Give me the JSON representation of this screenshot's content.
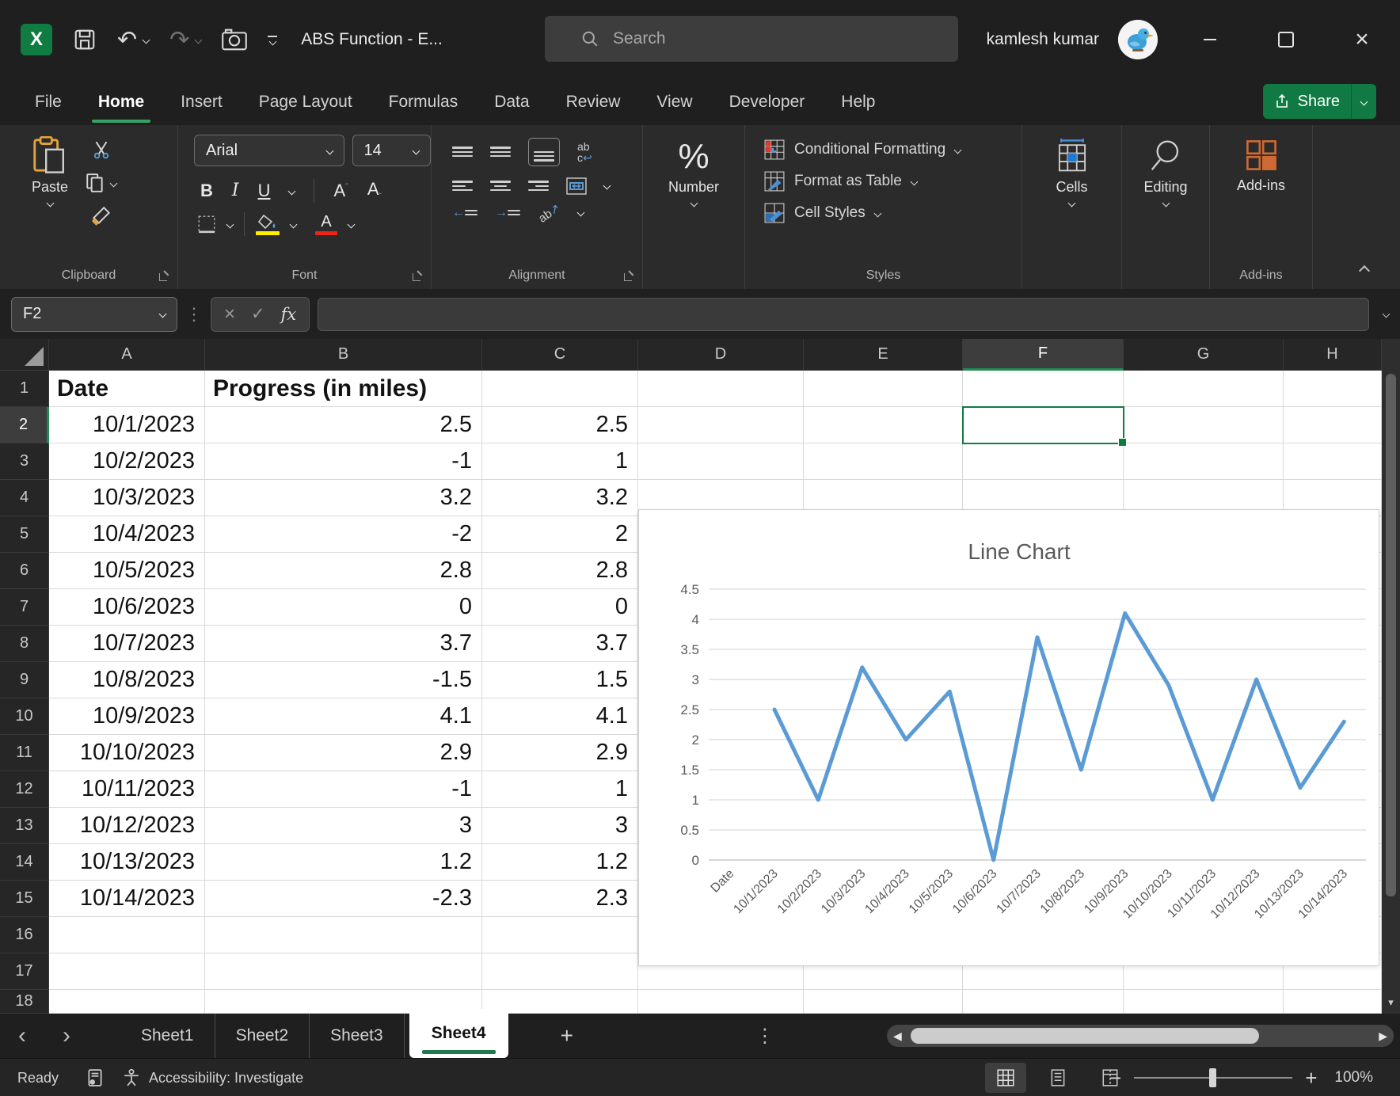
{
  "title_bar": {
    "app_title": "ABS Function  -  E...",
    "search_placeholder": "Search",
    "user_name": "kamlesh kumar"
  },
  "ribbon_tabs": [
    {
      "label": "File",
      "active": false
    },
    {
      "label": "Home",
      "active": true
    },
    {
      "label": "Insert",
      "active": false
    },
    {
      "label": "Page Layout",
      "active": false
    },
    {
      "label": "Formulas",
      "active": false
    },
    {
      "label": "Data",
      "active": false
    },
    {
      "label": "Review",
      "active": false
    },
    {
      "label": "View",
      "active": false
    },
    {
      "label": "Developer",
      "active": false
    },
    {
      "label": "Help",
      "active": false
    }
  ],
  "share": {
    "label": "Share"
  },
  "ribbon": {
    "clipboard": {
      "group_label": "Clipboard",
      "paste_label": "Paste"
    },
    "font": {
      "group_label": "Font",
      "font_name": "Arial",
      "font_size": "14"
    },
    "alignment": {
      "group_label": "Alignment"
    },
    "number": {
      "button_label": "Number"
    },
    "styles": {
      "group_label": "Styles",
      "conditional_formatting": "Conditional Formatting",
      "format_as_table": "Format as Table",
      "cell_styles": "Cell Styles"
    },
    "cells": {
      "button_label": "Cells"
    },
    "editing": {
      "button_label": "Editing"
    },
    "addins": {
      "button_label": "Add-ins",
      "group_label": "Add-ins"
    }
  },
  "formula_bar": {
    "name_box": "F2",
    "formula_value": ""
  },
  "grid": {
    "column_headers": [
      "A",
      "B",
      "C",
      "D",
      "E",
      "F",
      "G",
      "H"
    ],
    "selected_cell": "F2",
    "selected_column": "F",
    "selected_row": "2",
    "rows": [
      {
        "n": "1",
        "A": "Date",
        "B": "Progress (in miles)",
        "C": ""
      },
      {
        "n": "2",
        "A": "10/1/2023",
        "B": "2.5",
        "C": "2.5"
      },
      {
        "n": "3",
        "A": "10/2/2023",
        "B": "-1",
        "C": "1"
      },
      {
        "n": "4",
        "A": "10/3/2023",
        "B": "3.2",
        "C": "3.2"
      },
      {
        "n": "5",
        "A": "10/4/2023",
        "B": "-2",
        "C": "2"
      },
      {
        "n": "6",
        "A": "10/5/2023",
        "B": "2.8",
        "C": "2.8"
      },
      {
        "n": "7",
        "A": "10/6/2023",
        "B": "0",
        "C": "0"
      },
      {
        "n": "8",
        "A": "10/7/2023",
        "B": "3.7",
        "C": "3.7"
      },
      {
        "n": "9",
        "A": "10/8/2023",
        "B": "-1.5",
        "C": "1.5"
      },
      {
        "n": "10",
        "A": "10/9/2023",
        "B": "4.1",
        "C": "4.1"
      },
      {
        "n": "11",
        "A": "10/10/2023",
        "B": "2.9",
        "C": "2.9"
      },
      {
        "n": "12",
        "A": "10/11/2023",
        "B": "-1",
        "C": "1"
      },
      {
        "n": "13",
        "A": "10/12/2023",
        "B": "3",
        "C": "3"
      },
      {
        "n": "14",
        "A": "10/13/2023",
        "B": "1.2",
        "C": "1.2"
      },
      {
        "n": "15",
        "A": "10/14/2023",
        "B": "-2.3",
        "C": "2.3"
      }
    ]
  },
  "chart_data": {
    "type": "line",
    "title": "Line Chart",
    "categories": [
      "Date",
      "10/1/2023",
      "10/2/2023",
      "10/3/2023",
      "10/4/2023",
      "10/5/2023",
      "10/6/2023",
      "10/7/2023",
      "10/8/2023",
      "10/9/2023",
      "10/10/2023",
      "10/11/2023",
      "10/12/2023",
      "10/13/2023",
      "10/14/2023"
    ],
    "values": [
      null,
      2.5,
      1,
      3.2,
      2,
      2.8,
      0,
      3.7,
      1.5,
      4.1,
      2.9,
      1,
      3,
      1.2,
      2.3
    ],
    "ylim": [
      0,
      4.5
    ],
    "ytick_step": 0.5,
    "xlabel": "",
    "ylabel": "",
    "grid": true,
    "legend": "none",
    "line_color": "#5b9bd5"
  },
  "sheet_bar": {
    "tabs": [
      {
        "label": "Sheet1",
        "active": false
      },
      {
        "label": "Sheet2",
        "active": false
      },
      {
        "label": "Sheet3",
        "active": false
      },
      {
        "label": "Sheet4",
        "active": true
      }
    ],
    "add_sheet": "+"
  },
  "status_bar": {
    "ready": "Ready",
    "accessibility": "Accessibility: Investigate",
    "zoom_level": "100%"
  },
  "colors": {
    "accent_green": "#217346",
    "selection_green": "#107c41",
    "tab_underline_green": "#35a365",
    "chart_line_blue": "#5b9bd5",
    "fill_yellow": "#ffee00",
    "font_color_red": "#ee2417"
  }
}
